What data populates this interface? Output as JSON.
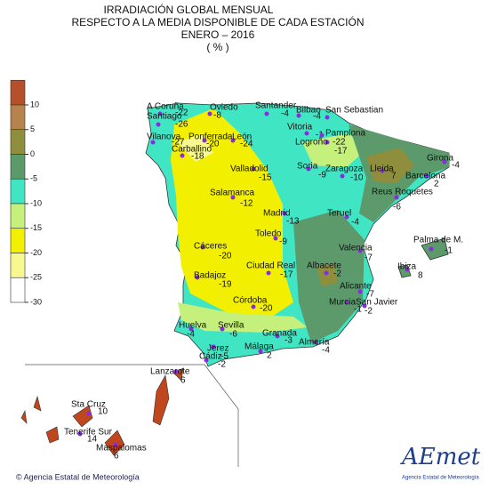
{
  "header": {
    "lines": [
      "IRRADIACIÓN GLOBAL MENSUAL",
      "RESPECTO A LA MEDIA DISPONIBLE DE CADA ESTACIÓN",
      "ENERO – 2016",
      "( % )"
    ]
  },
  "legend": {
    "ticks": [
      10,
      5,
      0,
      -5,
      -10,
      -15,
      -20,
      -25,
      -30
    ],
    "colors": [
      "#b5502a",
      "#b8824c",
      "#8e8e3c",
      "#5c9a6c",
      "#40e6c4",
      "#c6f07c",
      "#f2ef00",
      "#f8f890",
      "#ffffff"
    ]
  },
  "stations": [
    {
      "name": "A Coruña",
      "value": -22
    },
    {
      "name": "Santiago",
      "value": -26
    },
    {
      "name": "Vilanova",
      "value": -27
    },
    {
      "name": "Oviedo",
      "value": -8
    },
    {
      "name": "Santander",
      "value": -4
    },
    {
      "name": "Bilbao",
      "value": -4
    },
    {
      "name": "San Sebastian"
    },
    {
      "name": "Vitoria",
      "value": -1
    },
    {
      "name": "Pamplona",
      "value": -17
    },
    {
      "name": "Logroño",
      "value": -22
    },
    {
      "name": "Ponferrada",
      "value": -20
    },
    {
      "name": "León",
      "value": -24
    },
    {
      "name": "Carballino",
      "value": -18
    },
    {
      "name": "Valladolid",
      "value": -15
    },
    {
      "name": "Soria",
      "value": -9
    },
    {
      "name": "Zaragoza",
      "value": -10
    },
    {
      "name": "Lleida",
      "value": 7
    },
    {
      "name": "Girona",
      "value": -4
    },
    {
      "name": "Barcelona",
      "value": 2
    },
    {
      "name": "Reus Roquetes",
      "value": -6
    },
    {
      "name": "Salamanca",
      "value": -12
    },
    {
      "name": "Madrid",
      "value": -13
    },
    {
      "name": "Teruel",
      "value": -4
    },
    {
      "name": "Toledo",
      "value": -9
    },
    {
      "name": "Palma de M.",
      "value": -1
    },
    {
      "name": "Valencia",
      "value": -7
    },
    {
      "name": "Cáceres",
      "value": -20
    },
    {
      "name": "Ibiza",
      "value": 8
    },
    {
      "name": "Badajoz",
      "value": -19
    },
    {
      "name": "Ciudad Real",
      "value": -17
    },
    {
      "name": "Albacete",
      "value": -2
    },
    {
      "name": "Alicante",
      "value": -7
    },
    {
      "name": "Murcia",
      "value": -1
    },
    {
      "name": "San Javier",
      "value": -2
    },
    {
      "name": "Córdoba",
      "value": -20
    },
    {
      "name": "Huelva",
      "value": -4
    },
    {
      "name": "Sevilla",
      "value": -6
    },
    {
      "name": "Granada",
      "value": -3
    },
    {
      "name": "Almería",
      "value": -4
    },
    {
      "name": "Jerez",
      "value": -5
    },
    {
      "name": "Cádiz",
      "value": -2
    },
    {
      "name": "Málaga",
      "value": 2
    },
    {
      "name": "Lanzarote",
      "value": 6
    },
    {
      "name": "Sta Cruz",
      "value": 10
    },
    {
      "name": "Tenerife Sur",
      "value": 14
    },
    {
      "name": "Maspalomas",
      "value": 6
    }
  ],
  "footer": {
    "credit": "© Agencia Estatal de Meteorología",
    "logo": "AEmet",
    "logo_sub": "Agencia Estatal de Meteorología"
  }
}
